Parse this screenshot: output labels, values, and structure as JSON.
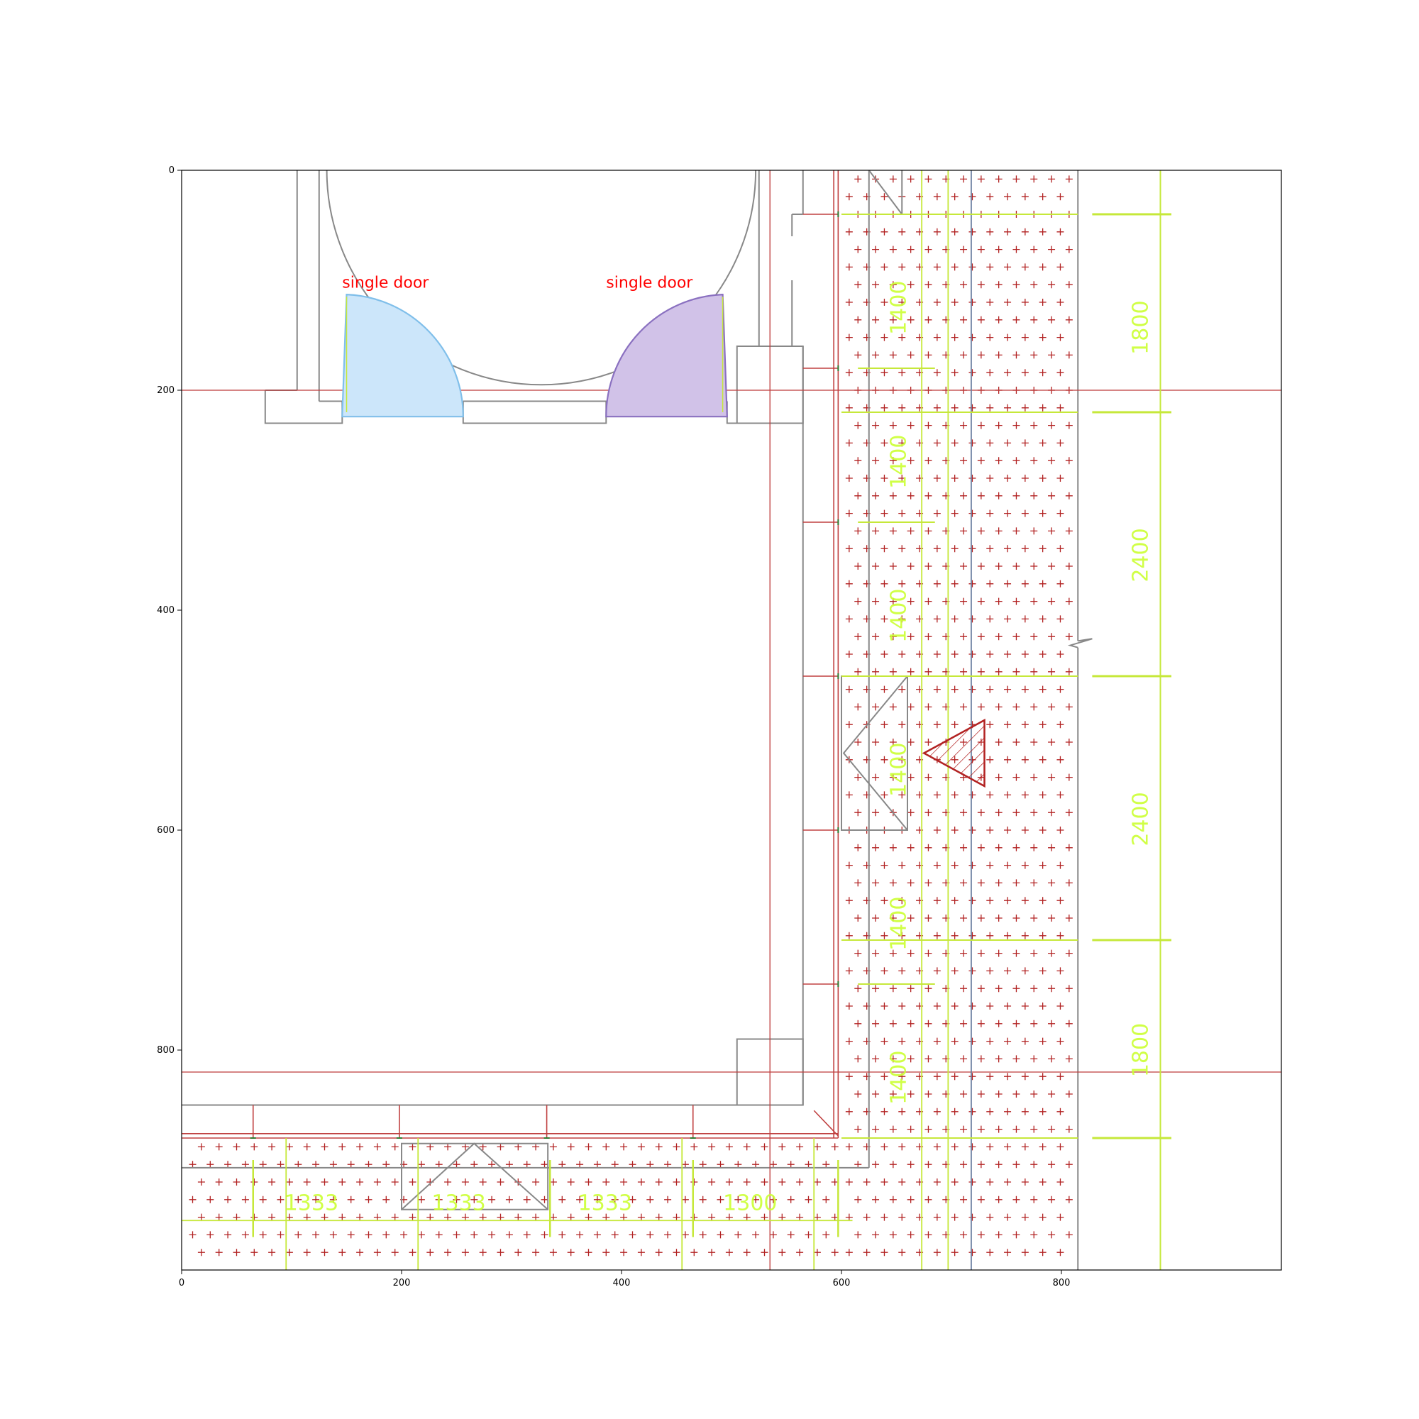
{
  "colors": {
    "wall": "#888888",
    "grid_red": "#c04040",
    "dimension": "#c6e83a",
    "hatch_red": "#b22222",
    "door_blue_fill": "#cce6fa",
    "door_blue_edge": "#80bfea",
    "door_purple_fill": "#d1c2e8",
    "door_purple_edge": "#8a70c0",
    "blue_line": "#6a7fa0"
  },
  "axes": {
    "xlim": [
      0,
      1000
    ],
    "ylim": [
      1000,
      0
    ],
    "x_ticks": [
      {
        "value": 0,
        "label": "0"
      },
      {
        "value": 200,
        "label": "200"
      },
      {
        "value": 400,
        "label": "400"
      },
      {
        "value": 600,
        "label": "600"
      },
      {
        "value": 800,
        "label": "800"
      }
    ],
    "y_ticks": [
      {
        "value": 0,
        "label": "0"
      },
      {
        "value": 200,
        "label": "200"
      },
      {
        "value": 400,
        "label": "400"
      },
      {
        "value": 600,
        "label": "600"
      },
      {
        "value": 800,
        "label": "800"
      }
    ]
  },
  "doors": [
    {
      "label": "single door",
      "label_x": 146,
      "label_y": 108,
      "x1": 146,
      "x2": 256,
      "y_top": 113,
      "y_bottom": 224,
      "hinge": "left",
      "fill": "door_blue_fill",
      "edge": "door_blue_edge"
    },
    {
      "label": "single door",
      "label_x": 386,
      "label_y": 108,
      "x1": 386,
      "x2": 496,
      "y_top": 113,
      "y_bottom": 224,
      "hinge": "right",
      "fill": "door_purple_fill",
      "edge": "door_purple_edge"
    }
  ],
  "dimensions": {
    "column_1400": {
      "x": 653,
      "values": [
        {
          "label": "1400",
          "y": 125
        },
        {
          "label": "1400",
          "y": 265
        },
        {
          "label": "1400",
          "y": 405
        },
        {
          "label": "1400",
          "y": 545
        },
        {
          "label": "1400",
          "y": 685
        },
        {
          "label": "1400",
          "y": 825
        }
      ]
    },
    "column_right": {
      "x": 873,
      "values": [
        {
          "label": "1800",
          "y": 143
        },
        {
          "label": "2400",
          "y": 350
        },
        {
          "label": "2400",
          "y": 590
        },
        {
          "label": "1800",
          "y": 800
        }
      ]
    },
    "row_bottom": {
      "y": 940,
      "values": [
        {
          "label": "1333",
          "x": 118
        },
        {
          "label": "1333",
          "x": 252
        },
        {
          "label": "1333",
          "x": 385
        },
        {
          "label": "1300",
          "x": 517
        }
      ]
    }
  },
  "grid_lines": {
    "horizontal": [
      200,
      820
    ],
    "vertical": [
      535
    ]
  },
  "hatch_regions": [
    {
      "x1": 597,
      "x2": 815,
      "y1": 0,
      "y2": 1000
    },
    {
      "x1": 0,
      "x2": 597,
      "y1": 880,
      "y2": 1000
    }
  ]
}
